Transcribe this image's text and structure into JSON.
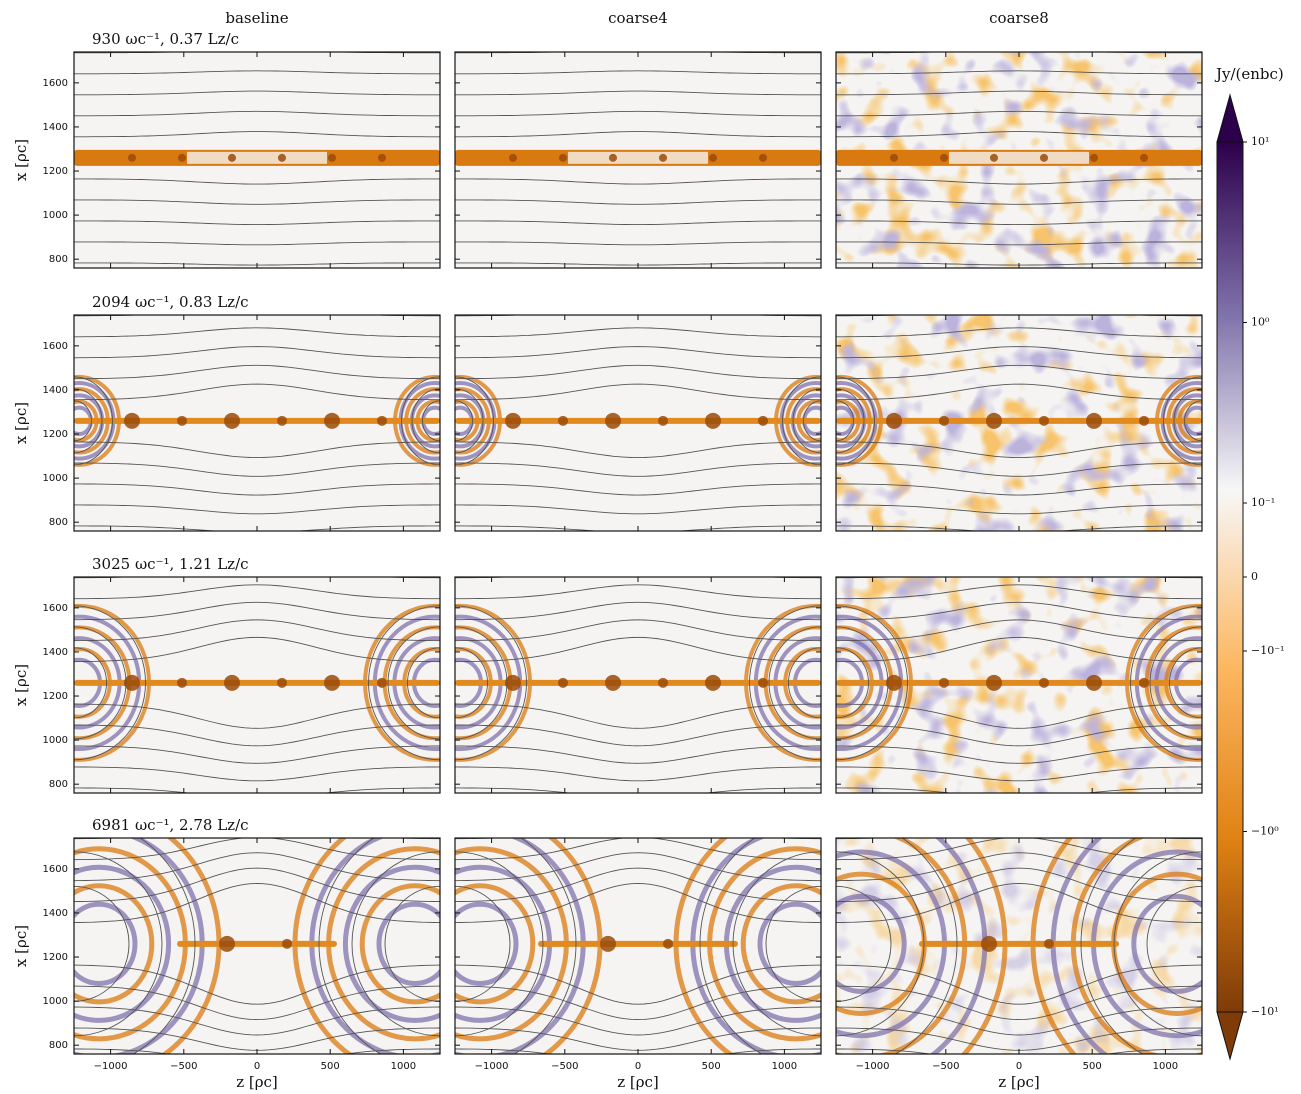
{
  "chart_data": {
    "type": "heatmap",
    "columns": [
      "baseline",
      "coarse4",
      "coarse8"
    ],
    "rows": [
      "930 ωc⁻¹,  0.37 Lz/c",
      "2094 ωc⁻¹,  0.83 Lz/c",
      "3025 ωc⁻¹,  1.21 Lz/c",
      "6981 ωc⁻¹,  2.78 Lz/c"
    ],
    "xlabel": "z [ρc]",
    "ylabel": "x [ρc]",
    "xlim": [
      -1250,
      1250
    ],
    "ylim": [
      760,
      1740
    ],
    "xticks": [
      {
        "value": -1000,
        "label": "−1000"
      },
      {
        "value": -500,
        "label": "−500"
      },
      0,
      500,
      1000
    ],
    "yticks": [
      800,
      1000,
      1200,
      1400,
      1600
    ],
    "colorbar": {
      "label": "Jy/(enbc)",
      "scale": "symlog",
      "linthresh": 0.1,
      "lim": [
        -10,
        10
      ],
      "ticks": [
        {
          "value": 10,
          "label": "10¹"
        },
        {
          "value": 1,
          "label": "10⁰"
        },
        {
          "value": 0.1,
          "label": "10⁻¹"
        },
        0,
        {
          "value": -0.1,
          "label": "−10⁻¹"
        },
        {
          "value": -1,
          "label": "−10⁰"
        },
        {
          "value": -10,
          "label": "−10¹"
        }
      ],
      "colors": [
        "#2d004b",
        "#8073ac",
        "#f7f7f7",
        "#fdb863",
        "#e08214",
        "#7f3b08"
      ]
    }
  }
}
